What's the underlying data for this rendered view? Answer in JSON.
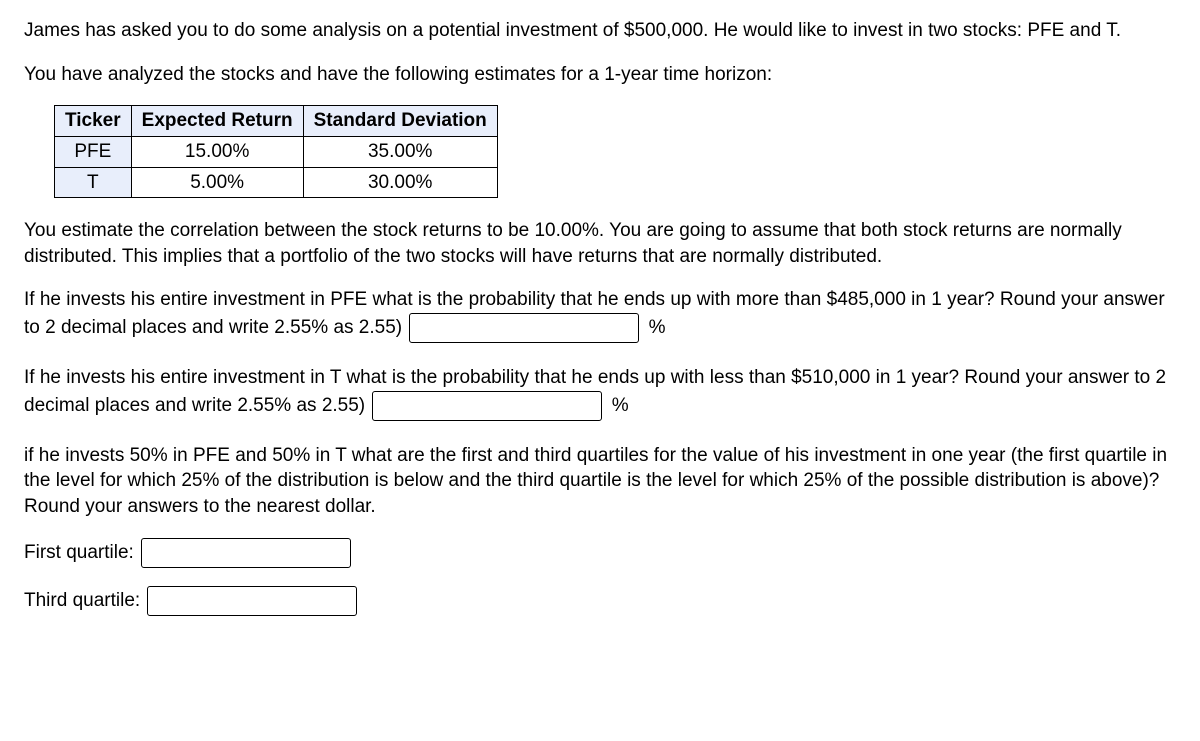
{
  "intro": {
    "line1": "James has asked you to do some analysis on a potential investment of $500,000. He would like to invest in two stocks: PFE and T.",
    "line2": "You have analyzed the stocks and have the following estimates for a 1-year time horizon:"
  },
  "table": {
    "headers": {
      "ticker": "Ticker",
      "er": "Expected Return",
      "sd": "Standard Deviation"
    },
    "rows": [
      {
        "ticker": "PFE",
        "er": "15.00%",
        "sd": "35.00%"
      },
      {
        "ticker": "T",
        "er": "5.00%",
        "sd": "30.00%"
      }
    ],
    "header_bg": "#e8eefb",
    "border_color": "#000000"
  },
  "corr_para": "You estimate the correlation between the stock returns to be 10.00%. You are going to assume that both stock returns are normally distributed. This implies that a portfolio of the two stocks will have returns that are normally distributed.",
  "q1": {
    "text_a": "If he invests his entire investment in PFE what is the probability that he ends up with more than $485,000 in 1 year? Round your answer to 2 decimal places and write 2.55% as 2.55)",
    "suffix": "%"
  },
  "q2": {
    "text_a": "If he invests his entire investment in T what is the probability that he ends up with less than $510,000 in 1 year? Round your answer to 2 decimal places and write 2.55% as 2.55)",
    "suffix": "%"
  },
  "q3": {
    "text": "if he invests 50% in PFE and 50% in T what are the first and third quartiles for the value of his investment in one year (the first quartile in the level for which 25% of the distribution is below and the third quartile is the level for which 25% of the possible distribution is above)? Round your answers to the nearest dollar."
  },
  "quartiles": {
    "first_label": "First quartile:",
    "third_label": "Third quartile:"
  }
}
